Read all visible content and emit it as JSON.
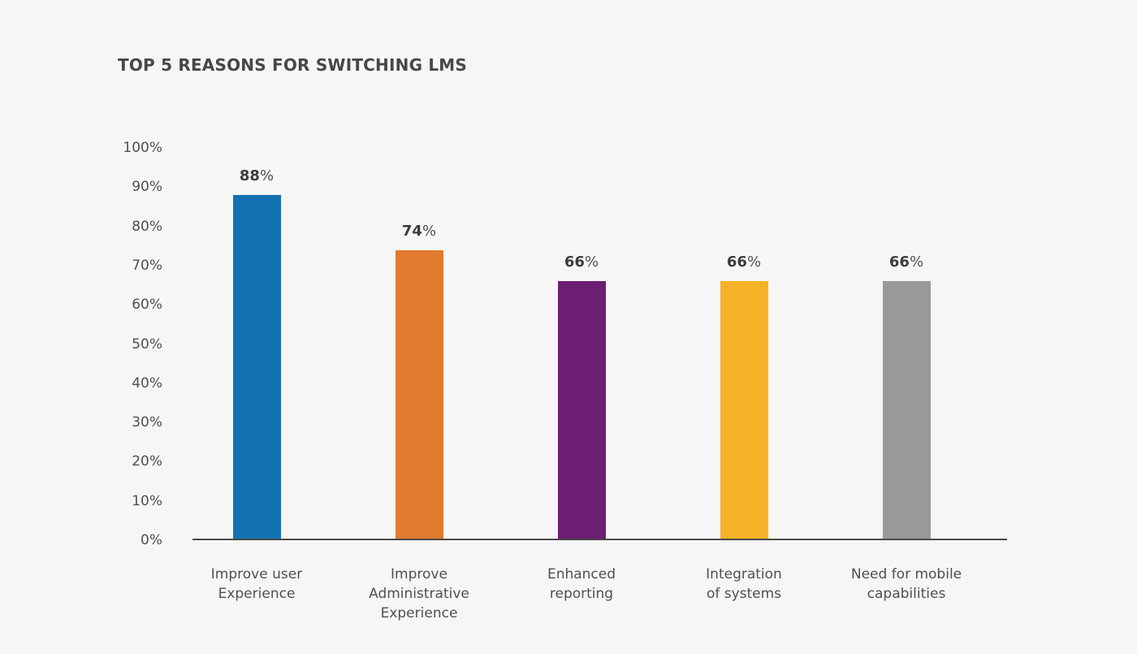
{
  "title": "TOP 5 REASONS FOR SWITCHING LMS",
  "chart_data": {
    "type": "bar",
    "title": "TOP 5 REASONS FOR SWITCHING LMS",
    "categories": [
      "Improve user\nExperience",
      "Improve\nAdministrative\nExperience",
      "Enhanced\nreporting",
      "Integration\nof systems",
      "Need for mobile\ncapabilities"
    ],
    "values": [
      88,
      74,
      66,
      66,
      66
    ],
    "value_suffix": "%",
    "value_labels": [
      "88%",
      "74%",
      "66%",
      "66%",
      "66%"
    ],
    "bar_colors": [
      "#1272b2",
      "#e07b2e",
      "#6b1e72",
      "#f6b227",
      "#999999"
    ],
    "yticks": [
      "100%",
      "90%",
      "80%",
      "70%",
      "60%",
      "50%",
      "40%",
      "30%",
      "20%",
      "10%",
      "0%"
    ],
    "ylim": [
      0,
      100
    ],
    "xlabel": "",
    "ylabel": "",
    "grid": false,
    "legend": null,
    "colors": {
      "background": "#f6f6f6",
      "axis": "#4a4a4a",
      "tick_text": "#4f4f4f",
      "title_text": "#474747",
      "value_text": "#3d3d3d"
    }
  }
}
